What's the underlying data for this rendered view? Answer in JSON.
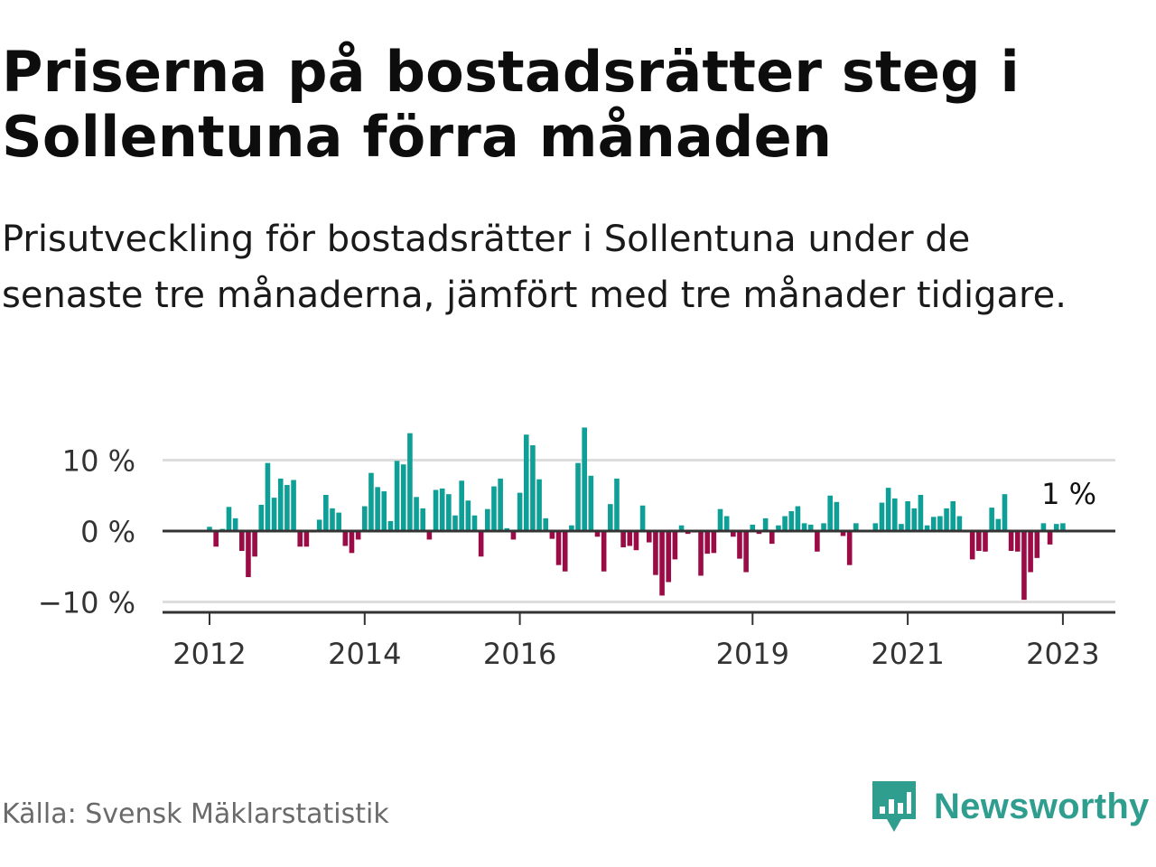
{
  "title": "Priserna på bostadsrätter steg i Sollentuna förra månaden",
  "subtitle": "Prisutveckling för bostadsrätter i Sollentuna under de senaste tre månaderna, jämfört med tre månader tidigare.",
  "source": "Källa: Svensk Mäklarstatistik",
  "brand": {
    "name": "Newsworthy",
    "icon": "newsworthy-logo-icon"
  },
  "colors": {
    "positive": "#0e9f96",
    "negative": "#9b0b45",
    "zero_line": "#333333",
    "grid": "#dddddd",
    "brand": "#2f9e8f"
  },
  "chart_data": {
    "type": "bar",
    "title": "",
    "xlabel": "",
    "ylabel": "",
    "ylim": [
      -12,
      10
    ],
    "yticks": [
      {
        "value": 10,
        "label": "10 %"
      },
      {
        "value": 0,
        "label": "0 %"
      },
      {
        "value": -10,
        "label": "−10 %"
      }
    ],
    "xticks": [
      {
        "x": 2012,
        "label": "2012"
      },
      {
        "x": 2014,
        "label": "2014"
      },
      {
        "x": 2016,
        "label": "2016"
      },
      {
        "x": 2019,
        "label": "2019"
      },
      {
        "x": 2021,
        "label": "2021"
      },
      {
        "x": 2023,
        "label": "2023"
      }
    ],
    "start": "2012-01",
    "grid": true,
    "annotation": {
      "label": "1 %",
      "value": 1
    },
    "values": [
      0.6,
      -2.2,
      0.3,
      3.4,
      1.8,
      -2.8,
      -6.5,
      -3.6,
      3.7,
      9.6,
      4.7,
      7.4,
      6.5,
      7.2,
      -2.2,
      -2.2,
      -0.2,
      1.6,
      5.1,
      3.2,
      2.6,
      -2.1,
      -3.1,
      -1.2,
      3.5,
      8.2,
      6.2,
      5.6,
      1.4,
      9.9,
      9.4,
      13.8,
      4.8,
      3.2,
      -1.2,
      5.8,
      6.0,
      5.2,
      2.2,
      7.1,
      4.3,
      2.2,
      -3.6,
      3.1,
      6.3,
      7.4,
      0.4,
      -1.2,
      5.4,
      13.6,
      12.1,
      7.3,
      1.8,
      -1.1,
      -4.8,
      -5.7,
      0.8,
      9.6,
      14.6,
      7.8,
      -0.8,
      -5.7,
      3.8,
      7.4,
      -2.3,
      -2.1,
      -2.7,
      3.6,
      -1.6,
      -6.2,
      -9.1,
      -7.2,
      -4.0,
      0.8,
      -0.4,
      -0.2,
      -6.3,
      -3.2,
      -3.1,
      3.1,
      2.1,
      -0.8,
      -3.9,
      -5.8,
      0.9,
      -0.4,
      1.8,
      -1.8,
      0.8,
      2.1,
      2.8,
      3.5,
      1.1,
      0.9,
      -2.9,
      1.1,
      5.0,
      4.1,
      -0.7,
      -4.8,
      1.1,
      0.0,
      0.0,
      1.1,
      4.0,
      6.1,
      4.6,
      1.0,
      4.2,
      3.2,
      5.1,
      0.8,
      2.0,
      2.1,
      3.2,
      4.2,
      2.1,
      -0.2,
      -4.0,
      -2.8,
      -2.9,
      3.3,
      1.7,
      5.2,
      -2.8,
      -2.9,
      -9.7,
      -5.8,
      -3.8,
      1.1,
      -1.9,
      1.0,
      1.1
    ]
  }
}
